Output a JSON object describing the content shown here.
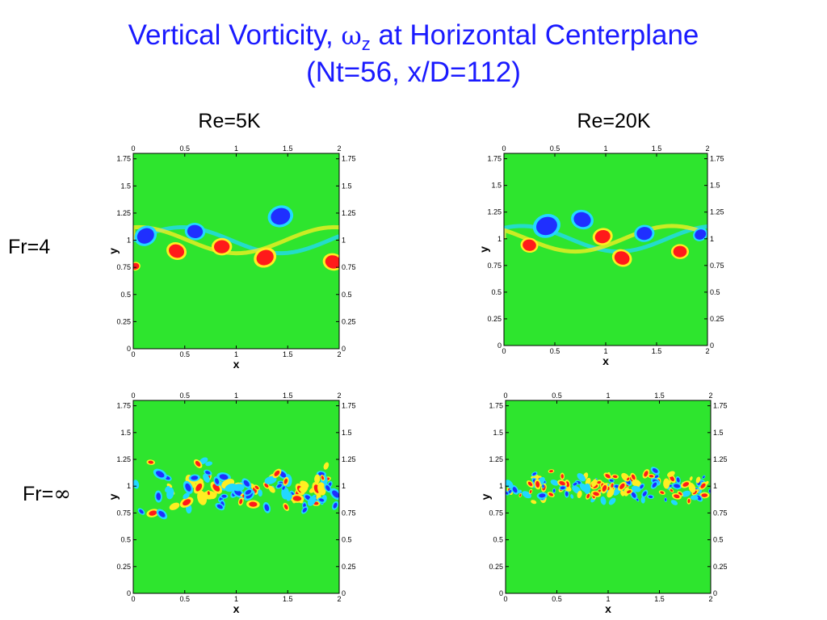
{
  "title": {
    "prefix": "Vertical Vorticity, ",
    "symbol": "ω",
    "subscript": "z",
    "suffix": " at Horizontal Centerplane",
    "line2": "(Nt=56, x/D=112)"
  },
  "columns": [
    "Re=5K",
    "Re=20K"
  ],
  "rows": [
    {
      "prefix": "Fr=",
      "value": "4"
    },
    {
      "prefix": "Fr=",
      "value": "∞"
    }
  ],
  "colors": {
    "background_field": "#2ee52e",
    "positive_core": "#ff1a1a",
    "positive_halo": "#ffee22",
    "negative_core": "#1f2fff",
    "negative_halo": "#22d8ff"
  },
  "chart_data": [
    {
      "type": "heatmap",
      "panel": "Re=5K, Fr=4",
      "xlabel": "x",
      "ylabel": "y",
      "xlim": [
        0,
        2
      ],
      "ylim": [
        0,
        1.8
      ],
      "xticks": [
        "0",
        "0.5",
        "1",
        "1.5",
        "2"
      ],
      "yticks": [
        "0",
        "0.25",
        "0.5",
        "0.75",
        "1",
        "1.25",
        "1.5",
        "1.75"
      ],
      "vortices": [
        {
          "x": 0.12,
          "y": 1.04,
          "sign": "negative",
          "size": 0.09
        },
        {
          "x": 0.6,
          "y": 1.08,
          "sign": "negative",
          "size": 0.08
        },
        {
          "x": 1.43,
          "y": 1.22,
          "sign": "negative",
          "size": 0.1
        },
        {
          "x": 0.42,
          "y": 0.9,
          "sign": "positive",
          "size": 0.08
        },
        {
          "x": 0.86,
          "y": 0.94,
          "sign": "positive",
          "size": 0.08
        },
        {
          "x": 1.28,
          "y": 0.84,
          "sign": "positive",
          "size": 0.09
        },
        {
          "x": 1.94,
          "y": 0.8,
          "sign": "positive",
          "size": 0.08
        },
        {
          "x": 0.02,
          "y": 0.76,
          "sign": "positive",
          "size": 0.04
        }
      ]
    },
    {
      "type": "heatmap",
      "panel": "Re=20K, Fr=4",
      "xlabel": "x",
      "ylabel": "y",
      "xlim": [
        0,
        2
      ],
      "ylim": [
        0,
        1.8
      ],
      "xticks": [
        "0",
        "0.5",
        "1",
        "1.5",
        "2"
      ],
      "yticks": [
        "0",
        "0.25",
        "0.5",
        "0.75",
        "1",
        "1.25",
        "1.5",
        "1.75"
      ],
      "vortices": [
        {
          "x": 0.42,
          "y": 1.12,
          "sign": "negative",
          "size": 0.11
        },
        {
          "x": 0.77,
          "y": 1.18,
          "sign": "negative",
          "size": 0.09
        },
        {
          "x": 1.38,
          "y": 1.05,
          "sign": "negative",
          "size": 0.08
        },
        {
          "x": 1.93,
          "y": 1.04,
          "sign": "negative",
          "size": 0.06
        },
        {
          "x": 0.25,
          "y": 0.94,
          "sign": "positive",
          "size": 0.07
        },
        {
          "x": 0.97,
          "y": 1.02,
          "sign": "positive",
          "size": 0.08
        },
        {
          "x": 1.16,
          "y": 0.82,
          "sign": "positive",
          "size": 0.08
        },
        {
          "x": 1.73,
          "y": 0.88,
          "sign": "positive",
          "size": 0.07
        }
      ]
    },
    {
      "type": "heatmap",
      "panel": "Re=5K, Fr=∞",
      "xlabel": "x",
      "ylabel": "y",
      "xlim": [
        0,
        2
      ],
      "ylim": [
        0,
        1.8
      ],
      "xticks": [
        "0",
        "0.5",
        "1",
        "1.5",
        "2"
      ],
      "yticks": [
        "0",
        "0.25",
        "0.5",
        "0.75",
        "1",
        "1.25",
        "1.5",
        "1.75"
      ],
      "band": {
        "ymin": 0.72,
        "ymax": 1.24,
        "density": "fine",
        "scale": 0.03
      }
    },
    {
      "type": "heatmap",
      "panel": "Re=20K, Fr=∞",
      "xlabel": "x",
      "ylabel": "y",
      "xlim": [
        0,
        2
      ],
      "ylim": [
        0,
        1.8
      ],
      "xticks": [
        "0",
        "0.5",
        "1",
        "1.5",
        "2"
      ],
      "yticks": [
        "0",
        "0.25",
        "0.5",
        "0.75",
        "1",
        "1.25",
        "1.5",
        "1.75"
      ],
      "band": {
        "ymin": 0.82,
        "ymax": 1.18,
        "density": "finer",
        "scale": 0.022
      }
    }
  ]
}
